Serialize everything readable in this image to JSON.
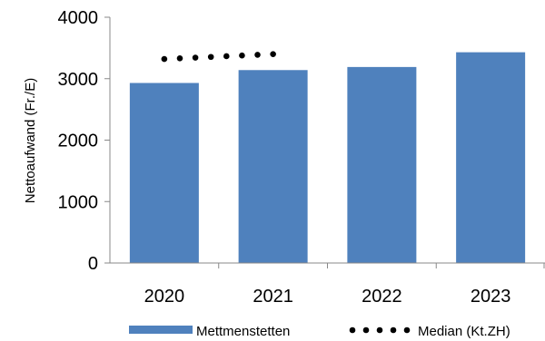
{
  "chart_data": {
    "type": "bar",
    "title": "",
    "xlabel": "",
    "ylabel": "Nettoaufwand (Fr./E)",
    "categories": [
      "2020",
      "2021",
      "2022",
      "2023"
    ],
    "ylim": [
      0,
      4000
    ],
    "yticks": [
      "0",
      "1000",
      "2000",
      "3000",
      "4000"
    ],
    "grid": false,
    "legend_position": "bottom",
    "series": [
      {
        "name": "Mettmenstetten",
        "kind": "bar",
        "color": "#4F81BD",
        "values": [
          2930,
          3140,
          3190,
          3430
        ]
      },
      {
        "name": "Median (Kt.ZH)",
        "kind": "dotted-line",
        "color": "#000000",
        "values": [
          3320,
          3400,
          null,
          null
        ]
      }
    ]
  }
}
